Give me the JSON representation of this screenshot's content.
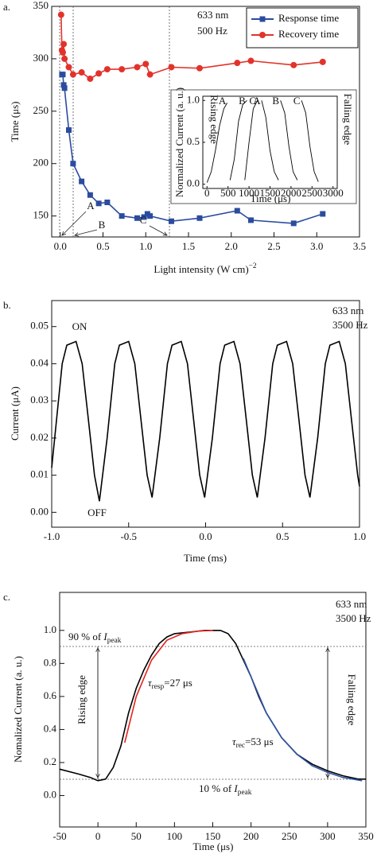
{
  "chart_data": [
    {
      "type": "line",
      "panel_label": "a.",
      "xlabel": {
        "text": "Light intensity (W cm",
        "superscript": "−2",
        "suffix": ")"
      },
      "ylabel": "Time (μs)",
      "xlim": [
        -0.1,
        3.5
      ],
      "ylim": [
        130,
        350
      ],
      "xticks": [
        {
          "value": 0,
          "label": "0.0"
        },
        0.5,
        {
          "value": 1,
          "label": "1.0"
        },
        1.5,
        {
          "value": 2,
          "label": "2.0"
        },
        2.5,
        {
          "value": 3,
          "label": "3.0"
        },
        3.5
      ],
      "yticks": [
        150,
        200,
        250,
        300,
        350
      ],
      "legend": "upper right",
      "annotations": [
        "633 nm",
        "500 Hz",
        "A",
        "B",
        "C"
      ],
      "series": [
        {
          "name": "Response time",
          "color": "#2b4c9e",
          "marker": "square",
          "x": [
            0.02,
            0.03,
            0.04,
            0.05,
            0.1,
            0.15,
            0.25,
            0.35,
            0.45,
            0.55,
            0.72,
            0.9,
            0.98,
            1.02,
            1.05,
            1.3,
            1.63,
            2.07,
            2.23,
            2.73,
            3.07
          ],
          "values": [
            285,
            285,
            275,
            272,
            232,
            200,
            183,
            170,
            162,
            163,
            150,
            148,
            149,
            152,
            150,
            145,
            148,
            155,
            146,
            143,
            152
          ]
        },
        {
          "name": "Recovery time",
          "color": "#e2332b",
          "marker": "circle",
          "x": [
            0.01,
            0.02,
            0.03,
            0.04,
            0.05,
            0.1,
            0.15,
            0.25,
            0.35,
            0.45,
            0.55,
            0.72,
            0.9,
            1.0,
            1.05,
            1.3,
            1.63,
            2.07,
            2.23,
            2.73,
            3.07
          ],
          "values": [
            342,
            308,
            306,
            314,
            300,
            292,
            285,
            287,
            281,
            286,
            290,
            290,
            292,
            295,
            285,
            292,
            291,
            296,
            298,
            294,
            297
          ]
        }
      ]
    },
    {
      "type": "line",
      "xlabel": "Time (μs)",
      "ylabel": "Normalized Current (a. u.)",
      "xlim": [
        -100,
        3100
      ],
      "ylim": [
        -0.05,
        1.05
      ],
      "xticks": [
        0,
        500,
        1000,
        1500,
        2000,
        2500,
        3000
      ],
      "yticks": [
        {
          "value": 0,
          "label": "0.0"
        },
        0.5,
        {
          "value": 1,
          "label": "1.0"
        }
      ],
      "annotations": [
        "Rising edge",
        "Falling edge"
      ],
      "series": [
        {
          "name": "A",
          "color": "#000000",
          "x": [
            0,
            100,
            200,
            300,
            400,
            480
          ],
          "values": [
            0.02,
            0.15,
            0.4,
            0.7,
            0.9,
            0.97
          ]
        },
        {
          "name": "B",
          "color": "#000000",
          "x": [
            550,
            650,
            750,
            850,
            950
          ],
          "values": [
            0.05,
            0.3,
            0.75,
            0.95,
            1.0
          ]
        },
        {
          "name": "C",
          "color": "#000000",
          "x": [
            900,
            1000,
            1100,
            1200
          ],
          "values": [
            0.05,
            0.5,
            0.9,
            1.0
          ]
        },
        {
          "name": "A",
          "color": "#000000",
          "x": [
            1300,
            1400,
            1500,
            1600,
            1700
          ],
          "values": [
            1.0,
            0.8,
            0.4,
            0.15,
            0.05
          ]
        },
        {
          "name": "B",
          "color": "#000000",
          "x": [
            1750,
            1850,
            1950,
            2050,
            2150
          ],
          "values": [
            1.0,
            0.85,
            0.45,
            0.15,
            0.05
          ]
        },
        {
          "name": "C",
          "color": "#000000",
          "x": [
            2250,
            2350,
            2450,
            2550,
            2650
          ],
          "values": [
            1.0,
            0.85,
            0.45,
            0.15,
            0.03
          ]
        }
      ]
    },
    {
      "type": "line",
      "panel_label": "b.",
      "xlabel": "Time (ms)",
      "ylabel": "Current (μA)",
      "xlim": [
        -1.0,
        1.0
      ],
      "ylim": [
        -0.004,
        0.057
      ],
      "xticks": [
        {
          "value": -1,
          "label": "-1.0"
        },
        -0.5,
        {
          "value": 0,
          "label": "0.0"
        },
        0.5,
        {
          "value": 1,
          "label": "1.0"
        }
      ],
      "yticks": [
        {
          "value": 0,
          "label": "0.00"
        },
        0.01,
        0.02,
        0.03,
        0.04,
        0.05
      ],
      "annotations": [
        "633 nm",
        "3500 Hz",
        "ON",
        "OFF"
      ],
      "series": [
        {
          "color": "#000000",
          "x": [
            -1.0,
            -0.932,
            -0.902,
            -0.842,
            -0.802,
            -0.762,
            -0.722,
            -0.69,
            -0.64,
            -0.59,
            -0.56,
            -0.5,
            -0.46,
            -0.42,
            -0.38,
            -0.348,
            -0.298,
            -0.248,
            -0.218,
            -0.158,
            -0.118,
            -0.078,
            -0.038,
            -0.006,
            0.044,
            0.094,
            0.124,
            0.184,
            0.224,
            0.264,
            0.304,
            0.336,
            0.386,
            0.436,
            0.466,
            0.526,
            0.566,
            0.606,
            0.646,
            0.678,
            0.728,
            0.778,
            0.808,
            0.868,
            0.908,
            0.948,
            0.988,
            1.0
          ],
          "values": [
            0.012,
            0.04,
            0.045,
            0.046,
            0.04,
            0.025,
            0.01,
            0.003,
            0.02,
            0.04,
            0.045,
            0.046,
            0.04,
            0.025,
            0.01,
            0.004,
            0.02,
            0.04,
            0.045,
            0.046,
            0.04,
            0.025,
            0.01,
            0.004,
            0.02,
            0.04,
            0.045,
            0.046,
            0.04,
            0.025,
            0.01,
            0.004,
            0.02,
            0.04,
            0.045,
            0.046,
            0.04,
            0.025,
            0.01,
            0.004,
            0.02,
            0.04,
            0.045,
            0.046,
            0.04,
            0.025,
            0.01,
            0.007
          ]
        }
      ]
    },
    {
      "type": "line",
      "panel_label": "c.",
      "xlabel": "Time (μs)",
      "ylabel": "Nomalized Current (a. u.)",
      "xlim": [
        -50,
        350
      ],
      "ylim": [
        -0.19,
        1.23
      ],
      "xticks": [
        -50,
        0,
        50,
        100,
        150,
        200,
        250,
        300,
        350
      ],
      "yticks": [
        {
          "value": 0,
          "label": "0.0"
        },
        0.2,
        0.4,
        0.6,
        0.8,
        {
          "value": 1,
          "label": "1.0"
        }
      ],
      "annotations": [
        {
          "text": "90 % of ",
          "symbol": "I",
          "subscript": "peak"
        },
        {
          "text": "10 % of ",
          "symbol": "I",
          "subscript": "peak"
        },
        {
          "symbol": "τ",
          "subscript": "resp",
          "suffix": "=27 μs"
        },
        {
          "symbol": "τ",
          "subscript": "rec",
          "suffix": "=53 μs"
        },
        "633 nm",
        "3500 Hz",
        "Rising edge",
        "Falling edge"
      ],
      "series": [
        {
          "color": "#000000",
          "x": [
            -50,
            -25,
            -10,
            0,
            10,
            20,
            30,
            40,
            50,
            60,
            70,
            80,
            90,
            100,
            120,
            140,
            160,
            170,
            180,
            190,
            200,
            210,
            220,
            240,
            260,
            280,
            300,
            320,
            340,
            350
          ],
          "values": [
            0.16,
            0.13,
            0.11,
            0.09,
            0.1,
            0.17,
            0.3,
            0.5,
            0.65,
            0.76,
            0.85,
            0.92,
            0.96,
            0.98,
            0.99,
            1.0,
            1.0,
            0.98,
            0.92,
            0.82,
            0.72,
            0.6,
            0.5,
            0.35,
            0.25,
            0.19,
            0.15,
            0.12,
            0.1,
            0.1
          ]
        },
        {
          "color": "#e3261f",
          "x": [
            35,
            50,
            70,
            90,
            110,
            130,
            150
          ],
          "values": [
            0.32,
            0.6,
            0.82,
            0.94,
            0.98,
            0.995,
            1.0
          ]
        },
        {
          "color": "#2f55a5",
          "x": [
            190,
            200,
            220,
            240,
            260,
            280,
            300,
            320,
            345
          ],
          "values": [
            0.83,
            0.72,
            0.5,
            0.35,
            0.25,
            0.18,
            0.14,
            0.11,
            0.09
          ]
        }
      ]
    }
  ]
}
